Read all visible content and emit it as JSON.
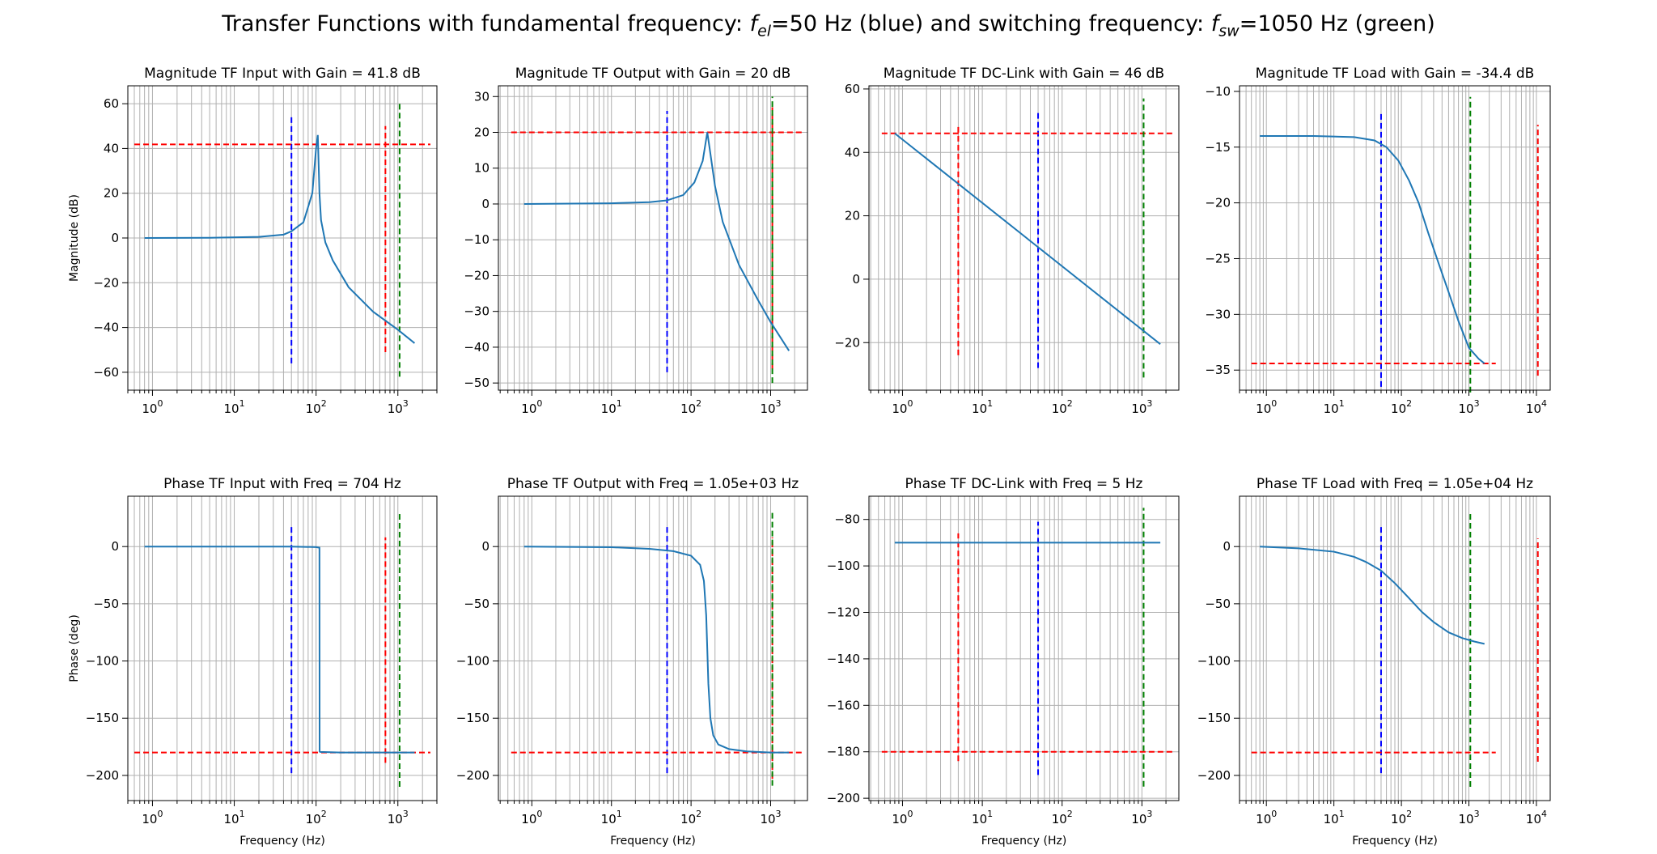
{
  "figure": {
    "title_pre": "Transfer Functions with fundamental frequency: ",
    "title_fel_sym": "f",
    "title_fel_sub": "el",
    "title_mid": "=50 Hz (blue) and switching frequency: ",
    "title_fsw_sym": "f",
    "title_fsw_sub": "sw",
    "title_post": "=1050 Hz (green)"
  },
  "colors": {
    "curve": "#1f77b4",
    "blue_marker": "#0000ff",
    "green_marker": "#008000",
    "red_marker": "#ff0000",
    "grid": "#b0b0b0"
  },
  "chart_data": [
    {
      "type": "line",
      "title": "Magnitude TF Input with Gain = 41.8 dB",
      "xlabel": "",
      "ylabel": "Magnitude (dB)",
      "xscale": "log",
      "xlim": [
        0.5,
        3000
      ],
      "ylim": [
        -68,
        68
      ],
      "xticks": [
        {
          "v": 1,
          "e": "0"
        },
        {
          "v": 10,
          "e": "1"
        },
        {
          "v": 100,
          "e": "2"
        },
        {
          "v": 1000,
          "e": "3"
        }
      ],
      "yticks": [
        -60,
        -40,
        -20,
        0,
        20,
        40,
        60
      ],
      "series": [
        {
          "x": [
            0.8,
            5,
            20,
            40,
            50,
            70,
            90,
            100,
            105,
            110,
            115,
            130,
            160,
            250,
            500,
            1000,
            1600
          ],
          "y": [
            0,
            0.1,
            0.5,
            1.5,
            3,
            7,
            20,
            40,
            46,
            20,
            8,
            -2,
            -10,
            -22,
            -33,
            -41,
            -47
          ]
        }
      ],
      "markers": [
        {
          "color": "blue",
          "orientation": "v",
          "at": 50,
          "from": -56,
          "to": 55
        },
        {
          "color": "red",
          "orientation": "h",
          "at": 41.8,
          "from": 0.6,
          "to": 2500
        },
        {
          "color": "red",
          "orientation": "v",
          "at": 704,
          "from": -51,
          "to": 50
        },
        {
          "color": "green",
          "orientation": "v",
          "at": 1050,
          "from": -62,
          "to": 61
        }
      ]
    },
    {
      "type": "line",
      "title": "Magnitude TF Output with Gain = 20 dB",
      "xlabel": "",
      "ylabel": "",
      "xscale": "log",
      "xlim": [
        0.38,
        2900
      ],
      "ylim": [
        -52,
        33
      ],
      "xticks": [
        {
          "v": 1,
          "e": "0"
        },
        {
          "v": 10,
          "e": "1"
        },
        {
          "v": 100,
          "e": "2"
        },
        {
          "v": 1000,
          "e": "3"
        }
      ],
      "yticks": [
        -50,
        -40,
        -30,
        -20,
        -10,
        0,
        10,
        20,
        30
      ],
      "series": [
        {
          "x": [
            0.8,
            10,
            30,
            50,
            80,
            110,
            140,
            160,
            170,
            200,
            250,
            400,
            700,
            1000,
            1700
          ],
          "y": [
            0,
            0.2,
            0.5,
            1,
            2.5,
            6,
            12,
            20,
            16,
            5,
            -5,
            -17,
            -27,
            -33,
            -41
          ]
        }
      ],
      "markers": [
        {
          "color": "blue",
          "orientation": "v",
          "at": 50,
          "from": -47,
          "to": 26
        },
        {
          "color": "red",
          "orientation": "h",
          "at": 20,
          "from": 0.55,
          "to": 2600
        },
        {
          "color": "red",
          "orientation": "v",
          "at": 1050,
          "from": -46,
          "to": 27
        },
        {
          "color": "green",
          "orientation": "v",
          "at": 1050,
          "from": -50,
          "to": 30
        }
      ]
    },
    {
      "type": "line",
      "title": "Magnitude TF DC-Link with Gain = 46 dB",
      "xlabel": "",
      "ylabel": "",
      "xscale": "log",
      "xlim": [
        0.38,
        2900
      ],
      "ylim": [
        -35,
        61
      ],
      "xticks": [
        {
          "v": 1,
          "e": "0"
        },
        {
          "v": 10,
          "e": "1"
        },
        {
          "v": 100,
          "e": "2"
        },
        {
          "v": 1000,
          "e": "3"
        }
      ],
      "yticks": [
        -20,
        0,
        20,
        40,
        60
      ],
      "series": [
        {
          "x": [
            0.8,
            1700
          ],
          "y": [
            46,
            -20.5
          ]
        }
      ],
      "markers": [
        {
          "color": "blue",
          "orientation": "v",
          "at": 50,
          "from": -28,
          "to": 53
        },
        {
          "color": "red",
          "orientation": "h",
          "at": 46,
          "from": 0.55,
          "to": 2600
        },
        {
          "color": "red",
          "orientation": "v",
          "at": 5,
          "from": -24,
          "to": 49
        },
        {
          "color": "green",
          "orientation": "v",
          "at": 1050,
          "from": -31,
          "to": 57
        }
      ]
    },
    {
      "type": "line",
      "title": "Magnitude TF Load with Gain = -34.4 dB",
      "xlabel": "",
      "ylabel": "",
      "xscale": "log",
      "xlim": [
        0.4,
        16000
      ],
      "ylim": [
        -36.8,
        -9.5
      ],
      "xticks": [
        {
          "v": 1,
          "e": "0"
        },
        {
          "v": 10,
          "e": "1"
        },
        {
          "v": 100,
          "e": "2"
        },
        {
          "v": 1000,
          "e": "3"
        },
        {
          "v": 10000,
          "e": "4"
        }
      ],
      "yticks": [
        -35,
        -30,
        -25,
        -20,
        -15,
        -10
      ],
      "series": [
        {
          "x": [
            0.8,
            5,
            20,
            40,
            60,
            90,
            130,
            180,
            250,
            350,
            500,
            700,
            1000,
            1400,
            1700
          ],
          "y": [
            -14,
            -14,
            -14.1,
            -14.4,
            -15,
            -16.2,
            -18,
            -20,
            -22.7,
            -25.3,
            -28,
            -30.6,
            -33,
            -34,
            -34.4
          ]
        }
      ],
      "markers": [
        {
          "color": "blue",
          "orientation": "v",
          "at": 50,
          "from": -36.5,
          "to": -12
        },
        {
          "color": "red",
          "orientation": "h",
          "at": -34.4,
          "from": 0.6,
          "to": 2500
        },
        {
          "color": "red",
          "orientation": "v",
          "at": 10500,
          "from": -35.5,
          "to": -13
        },
        {
          "color": "green",
          "orientation": "v",
          "at": 1050,
          "from": -37,
          "to": -10.5
        }
      ]
    },
    {
      "type": "line",
      "title": "Phase TF Input with Freq = 704 Hz",
      "xlabel": "Frequency (Hz)",
      "ylabel": "Phase (deg)",
      "xscale": "log",
      "xlim": [
        0.5,
        3000
      ],
      "ylim": [
        -222,
        44
      ],
      "xticks": [
        {
          "v": 1,
          "e": "0"
        },
        {
          "v": 10,
          "e": "1"
        },
        {
          "v": 100,
          "e": "2"
        },
        {
          "v": 1000,
          "e": "3"
        }
      ],
      "yticks": [
        -200,
        -150,
        -100,
        -50,
        0
      ],
      "series": [
        {
          "x": [
            0.8,
            50,
            100,
            110,
            110.5,
            112,
            200,
            1600
          ],
          "y": [
            0,
            0,
            -0.5,
            -1,
            -179,
            -179.5,
            -180,
            -180
          ]
        }
      ],
      "markers": [
        {
          "color": "blue",
          "orientation": "v",
          "at": 50,
          "from": -198,
          "to": 19
        },
        {
          "color": "red",
          "orientation": "h",
          "at": -180,
          "from": 0.6,
          "to": 2500
        },
        {
          "color": "red",
          "orientation": "v",
          "at": 704,
          "from": -189,
          "to": 8
        },
        {
          "color": "green",
          "orientation": "v",
          "at": 1050,
          "from": -210,
          "to": 30
        }
      ]
    },
    {
      "type": "line",
      "title": "Phase TF Output with Freq = 1.05e+03 Hz",
      "xlabel": "Frequency (Hz)",
      "ylabel": "",
      "xscale": "log",
      "xlim": [
        0.38,
        2900
      ],
      "ylim": [
        -222,
        44
      ],
      "xticks": [
        {
          "v": 1,
          "e": "0"
        },
        {
          "v": 10,
          "e": "1"
        },
        {
          "v": 100,
          "e": "2"
        },
        {
          "v": 1000,
          "e": "3"
        }
      ],
      "yticks": [
        -200,
        -150,
        -100,
        -50,
        0
      ],
      "series": [
        {
          "x": [
            0.8,
            10,
            30,
            60,
            100,
            130,
            145,
            155,
            160,
            165,
            175,
            190,
            220,
            300,
            500,
            1000,
            1700
          ],
          "y": [
            0,
            -0.6,
            -2,
            -4,
            -8,
            -16,
            -30,
            -60,
            -90,
            -120,
            -150,
            -165,
            -173,
            -177,
            -179,
            -180,
            -180
          ]
        }
      ],
      "markers": [
        {
          "color": "blue",
          "orientation": "v",
          "at": 50,
          "from": -198,
          "to": 19
        },
        {
          "color": "red",
          "orientation": "h",
          "at": -180,
          "from": 0.55,
          "to": 2600
        },
        {
          "color": "red",
          "orientation": "v",
          "at": 1050,
          "from": -203,
          "to": 8
        },
        {
          "color": "green",
          "orientation": "v",
          "at": 1050,
          "from": -209,
          "to": 30
        }
      ]
    },
    {
      "type": "line",
      "title": "Phase TF DC-Link with Freq = 5 Hz",
      "xlabel": "Frequency (Hz)",
      "ylabel": "",
      "xscale": "log",
      "xlim": [
        0.38,
        2900
      ],
      "ylim": [
        -201,
        -70
      ],
      "xticks": [
        {
          "v": 1,
          "e": "0"
        },
        {
          "v": 10,
          "e": "1"
        },
        {
          "v": 100,
          "e": "2"
        },
        {
          "v": 1000,
          "e": "3"
        }
      ],
      "yticks": [
        -200,
        -180,
        -160,
        -140,
        -120,
        -100,
        -80
      ],
      "series": [
        {
          "x": [
            0.8,
            1700
          ],
          "y": [
            -90,
            -90
          ]
        }
      ],
      "markers": [
        {
          "color": "blue",
          "orientation": "v",
          "at": 50,
          "from": -190,
          "to": -81
        },
        {
          "color": "red",
          "orientation": "h",
          "at": -180,
          "from": 0.55,
          "to": 2600
        },
        {
          "color": "red",
          "orientation": "v",
          "at": 5,
          "from": -184,
          "to": -86
        },
        {
          "color": "green",
          "orientation": "v",
          "at": 1050,
          "from": -195,
          "to": -75
        }
      ]
    },
    {
      "type": "line",
      "title": "Phase TF Load with Freq = 1.05e+04 Hz",
      "xlabel": "Frequency (Hz)",
      "ylabel": "",
      "xscale": "log",
      "xlim": [
        0.4,
        16000
      ],
      "ylim": [
        -222,
        44
      ],
      "xticks": [
        {
          "v": 1,
          "e": "0"
        },
        {
          "v": 10,
          "e": "1"
        },
        {
          "v": 100,
          "e": "2"
        },
        {
          "v": 1000,
          "e": "3"
        },
        {
          "v": 10000,
          "e": "4"
        }
      ],
      "yticks": [
        -200,
        -150,
        -100,
        -50,
        0
      ],
      "series": [
        {
          "x": [
            0.8,
            3,
            10,
            20,
            30,
            50,
            80,
            120,
            200,
            300,
            500,
            800,
            1200,
            1700
          ],
          "y": [
            0,
            -1.5,
            -4.5,
            -9,
            -13.5,
            -21,
            -32,
            -43,
            -57,
            -66,
            -75,
            -80,
            -83,
            -85
          ]
        }
      ],
      "markers": [
        {
          "color": "blue",
          "orientation": "v",
          "at": 50,
          "from": -198,
          "to": 19
        },
        {
          "color": "red",
          "orientation": "h",
          "at": -180,
          "from": 0.6,
          "to": 2500
        },
        {
          "color": "red",
          "orientation": "v",
          "at": 10500,
          "from": -188,
          "to": 7
        },
        {
          "color": "green",
          "orientation": "v",
          "at": 1050,
          "from": -210,
          "to": 30
        }
      ]
    }
  ]
}
